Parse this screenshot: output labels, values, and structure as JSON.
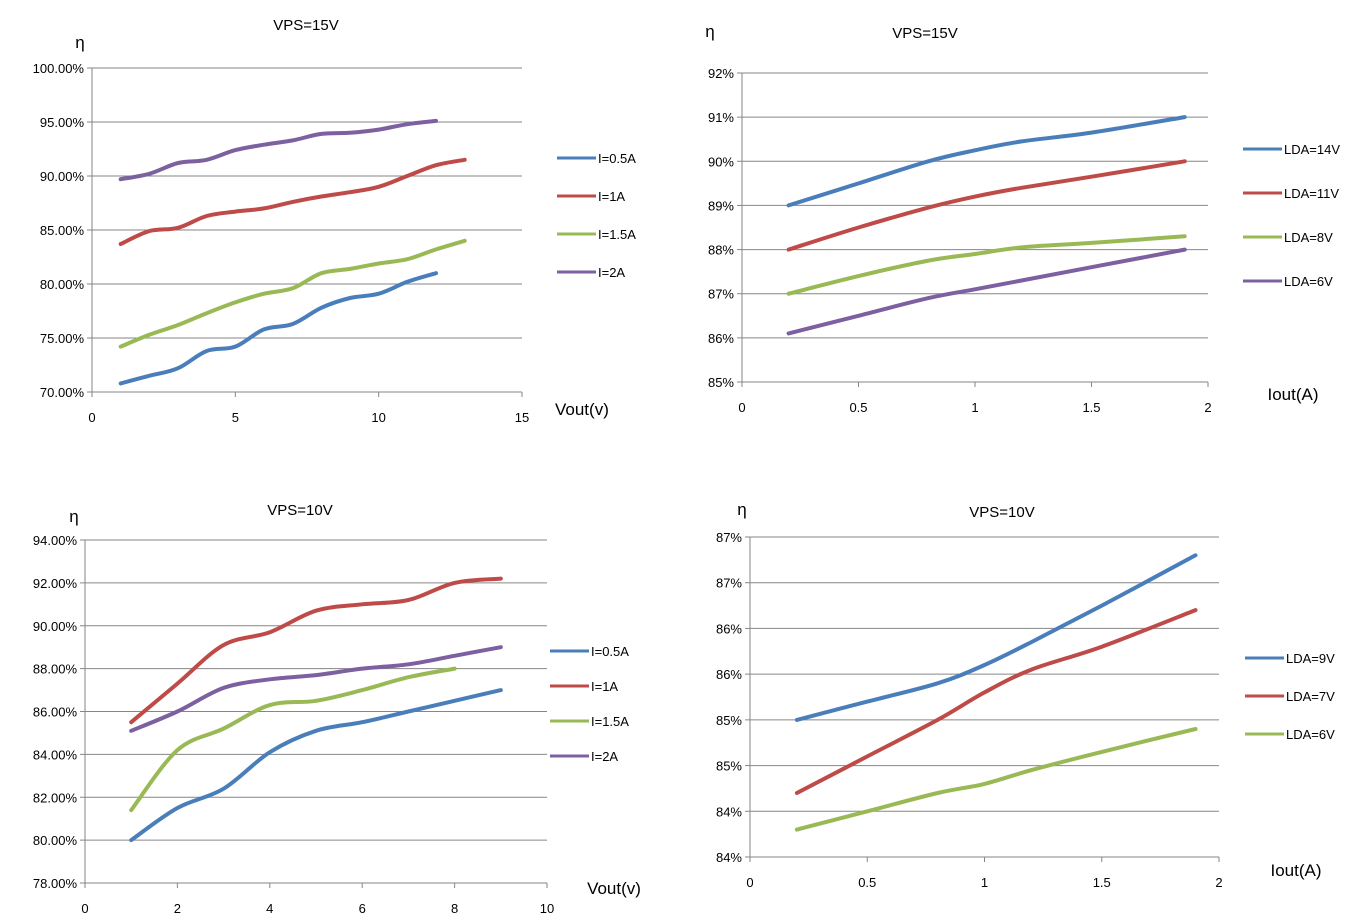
{
  "chart_data": [
    {
      "type": "line",
      "title": "VPS=15V",
      "ylabel": "η",
      "xlabel": "Vout(v)",
      "xlim": [
        0,
        15
      ],
      "ylim": [
        70,
        100
      ],
      "x_ticks": [
        "0",
        "5",
        "10",
        "15"
      ],
      "y_ticks": [
        "70.00%",
        "75.00%",
        "80.00%",
        "85.00%",
        "90.00%",
        "95.00%",
        "100.00%"
      ],
      "grid": true,
      "legend": "right",
      "series": [
        {
          "name": "I=0.5A",
          "color": "#4a7ebb",
          "x": [
            1,
            2,
            3,
            4,
            5,
            6,
            7,
            8,
            9,
            10,
            11,
            12
          ],
          "y": [
            70.8,
            71.5,
            72.2,
            73.8,
            74.2,
            75.8,
            76.3,
            77.8,
            78.7,
            79.1,
            80.2,
            81.0
          ]
        },
        {
          "name": "I=1A",
          "color": "#be4b48",
          "x": [
            1,
            2,
            3,
            4,
            5,
            6,
            7,
            8,
            9,
            10,
            11,
            12,
            13
          ],
          "y": [
            83.7,
            84.9,
            85.2,
            86.3,
            86.7,
            87.0,
            87.6,
            88.1,
            88.5,
            89.0,
            90.0,
            91.0,
            91.5
          ]
        },
        {
          "name": "I=1.5A",
          "color": "#98b954",
          "x": [
            1,
            2,
            3,
            4,
            5,
            6,
            7,
            8,
            9,
            10,
            11,
            12,
            13
          ],
          "y": [
            74.2,
            75.3,
            76.2,
            77.3,
            78.3,
            79.1,
            79.6,
            81.0,
            81.4,
            81.9,
            82.3,
            83.2,
            84.0
          ]
        },
        {
          "name": "I=2A",
          "color": "#7d60a0",
          "x": [
            1,
            2,
            3,
            4,
            5,
            6,
            7,
            8,
            9,
            10,
            11,
            12
          ],
          "y": [
            89.7,
            90.2,
            91.2,
            91.5,
            92.4,
            92.9,
            93.3,
            93.9,
            94.0,
            94.3,
            94.8,
            95.1
          ]
        }
      ]
    },
    {
      "type": "line",
      "title": "VPS=15V",
      "ylabel": "η",
      "xlabel": "Iout(A)",
      "xlim": [
        0,
        2
      ],
      "ylim": [
        85,
        92
      ],
      "x_ticks": [
        "0",
        "0.5",
        "1",
        "1.5",
        "2"
      ],
      "y_ticks": [
        "85%",
        "86%",
        "87%",
        "88%",
        "89%",
        "90%",
        "91%",
        "92%"
      ],
      "grid": true,
      "legend": "right",
      "series": [
        {
          "name": "LDA=14V",
          "color": "#4a7ebb",
          "x": [
            0.2,
            0.5,
            0.8,
            1.0,
            1.2,
            1.5,
            1.9
          ],
          "y": [
            89.0,
            89.5,
            90.0,
            90.25,
            90.45,
            90.65,
            91.0
          ]
        },
        {
          "name": "LDA=11V",
          "color": "#be4b48",
          "x": [
            0.2,
            0.5,
            0.8,
            1.0,
            1.2,
            1.5,
            1.9
          ],
          "y": [
            88.0,
            88.5,
            88.95,
            89.2,
            89.4,
            89.65,
            90.0
          ]
        },
        {
          "name": "LDA=8V",
          "color": "#98b954",
          "x": [
            0.2,
            0.5,
            0.8,
            1.0,
            1.2,
            1.5,
            1.9
          ],
          "y": [
            87.0,
            87.4,
            87.75,
            87.9,
            88.05,
            88.15,
            88.3
          ]
        },
        {
          "name": "LDA=6V",
          "color": "#7d60a0",
          "x": [
            0.2,
            0.5,
            0.8,
            1.0,
            1.2,
            1.5,
            1.9
          ],
          "y": [
            86.1,
            86.5,
            86.9,
            87.1,
            87.3,
            87.6,
            88.0
          ]
        }
      ]
    },
    {
      "type": "line",
      "title": "VPS=10V",
      "ylabel": "η",
      "xlabel": "Vout(v)",
      "xlim": [
        0,
        10
      ],
      "ylim": [
        78,
        94
      ],
      "x_ticks": [
        "0",
        "2",
        "4",
        "6",
        "8",
        "10"
      ],
      "y_ticks": [
        "78.00%",
        "80.00%",
        "82.00%",
        "84.00%",
        "86.00%",
        "88.00%",
        "90.00%",
        "92.00%",
        "94.00%"
      ],
      "grid": true,
      "legend": "right",
      "series": [
        {
          "name": "I=0.5A",
          "color": "#4a7ebb",
          "x": [
            1,
            2,
            3,
            4,
            5,
            6,
            7,
            8,
            9
          ],
          "y": [
            80.0,
            81.5,
            82.4,
            84.1,
            85.1,
            85.5,
            86.0,
            86.5,
            87.0
          ]
        },
        {
          "name": "I=1A",
          "color": "#be4b48",
          "x": [
            1,
            2,
            3,
            4,
            5,
            6,
            7,
            8,
            9
          ],
          "y": [
            85.5,
            87.3,
            89.1,
            89.7,
            90.7,
            91.0,
            91.2,
            92.0,
            92.2
          ]
        },
        {
          "name": "I=1.5A",
          "color": "#98b954",
          "x": [
            1,
            2,
            3,
            4,
            5,
            6,
            7,
            8
          ],
          "y": [
            81.4,
            84.2,
            85.2,
            86.3,
            86.5,
            87.0,
            87.6,
            88.0
          ]
        },
        {
          "name": "I=2A",
          "color": "#7d60a0",
          "x": [
            1,
            2,
            3,
            4,
            5,
            6,
            7,
            8,
            9
          ],
          "y": [
            85.1,
            86.0,
            87.1,
            87.5,
            87.7,
            88.0,
            88.2,
            88.6,
            89.0
          ]
        }
      ]
    },
    {
      "type": "line",
      "title": "VPS=10V",
      "ylabel": "η",
      "xlabel": "Iout(A)",
      "xlim": [
        0,
        2
      ],
      "ylim": [
        83.5,
        87
      ],
      "x_ticks": [
        "0",
        "0.5",
        "1",
        "1.5",
        "2"
      ],
      "y_ticks": [
        "84%",
        "84%",
        "85%",
        "85%",
        "86%",
        "86%",
        "87%",
        "87%"
      ],
      "grid": true,
      "legend": "right",
      "series": [
        {
          "name": "LDA=9V",
          "color": "#4a7ebb",
          "x": [
            0.2,
            0.5,
            0.8,
            1.0,
            1.2,
            1.5,
            1.9
          ],
          "y": [
            85.0,
            85.2,
            85.4,
            85.6,
            85.85,
            86.25,
            86.8
          ]
        },
        {
          "name": "LDA=7V",
          "color": "#be4b48",
          "x": [
            0.2,
            0.5,
            0.8,
            1.0,
            1.2,
            1.5,
            1.9
          ],
          "y": [
            84.2,
            84.6,
            85.0,
            85.3,
            85.55,
            85.8,
            86.2
          ]
        },
        {
          "name": "LDA=6V",
          "color": "#98b954",
          "x": [
            0.2,
            0.5,
            0.8,
            1.0,
            1.2,
            1.5,
            1.9
          ],
          "y": [
            83.8,
            84.0,
            84.2,
            84.3,
            84.45,
            84.65,
            84.9
          ]
        }
      ]
    }
  ]
}
